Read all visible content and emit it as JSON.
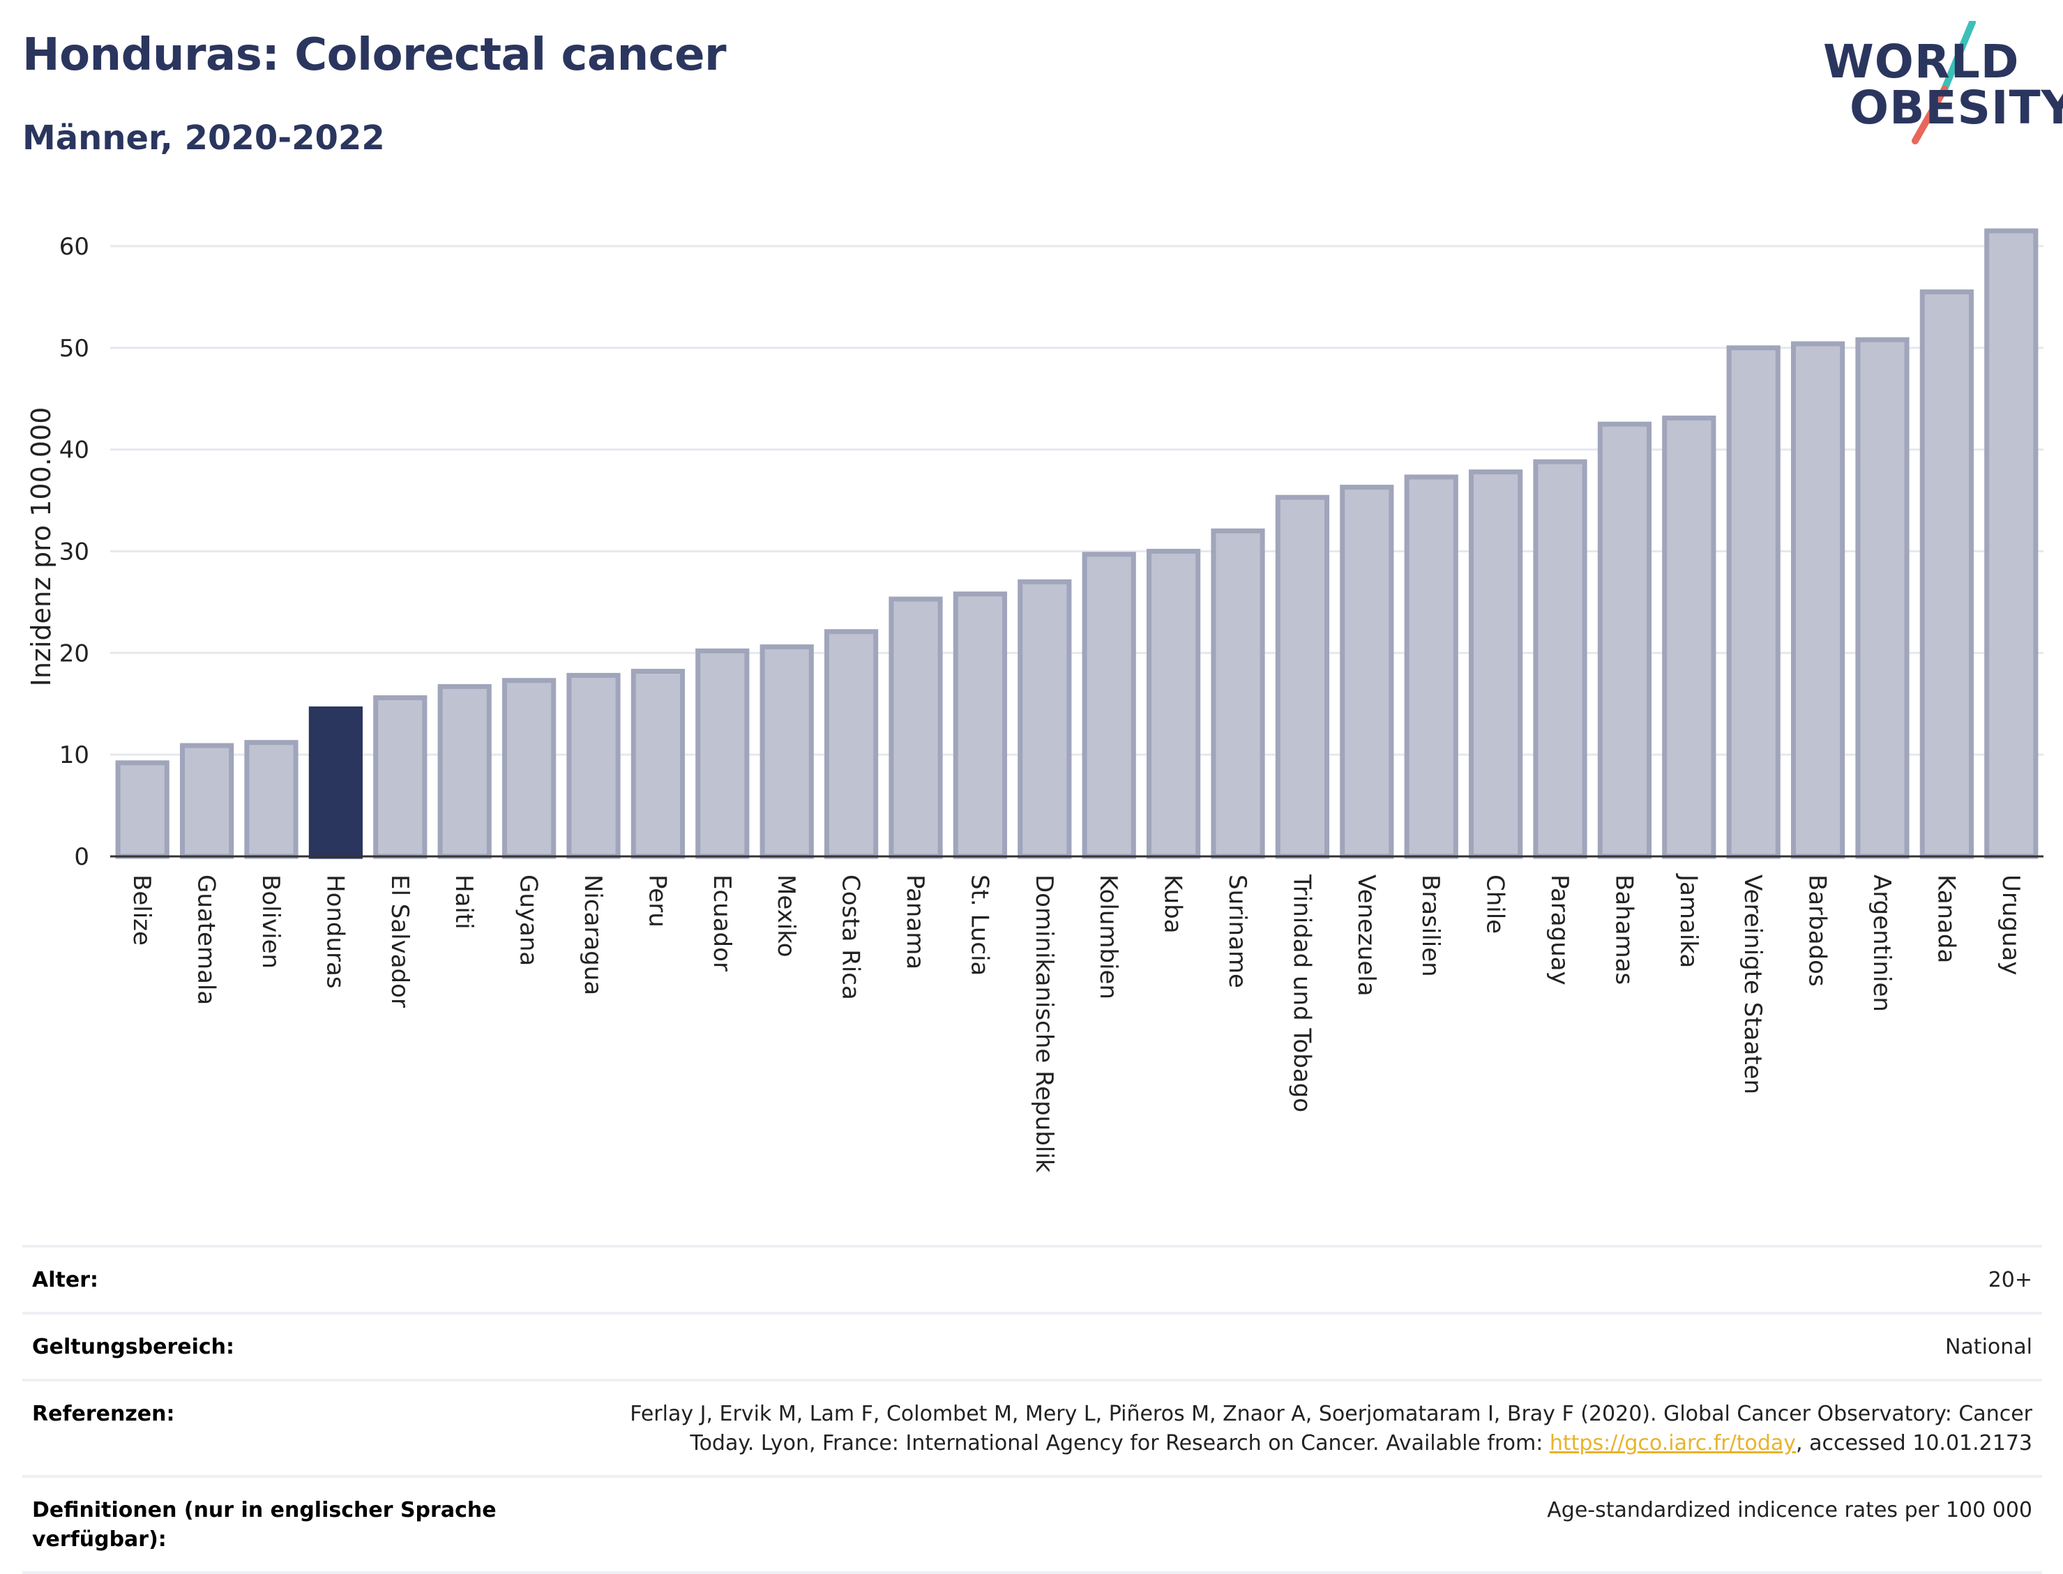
{
  "header": {
    "title": "Honduras: Colorectal cancer",
    "subtitle": "Männer, 2020-2022"
  },
  "logo": {
    "line1": "WORLD",
    "line2": "OBESITY",
    "slash_colors": [
      "#3dbfb8",
      "#e8675a"
    ]
  },
  "colors": {
    "highlight_bar": "#2b365f",
    "bar_fill": "#bfc2d0",
    "bar_stroke": "#a0a5bb",
    "grid": "#e6e8ee"
  },
  "chart_data": {
    "type": "bar",
    "ylabel": "Inzidenz pro 100.000",
    "xlabel": "",
    "ylim": [
      0,
      65
    ],
    "yticks": [
      0,
      10,
      20,
      30,
      40,
      50,
      60
    ],
    "grid": true,
    "highlight": "Honduras",
    "categories": [
      "Belize",
      "Guatemala",
      "Bolivien",
      "Honduras",
      "El Salvador",
      "Haiti",
      "Guyana",
      "Nicaragua",
      "Peru",
      "Ecuador",
      "Mexiko",
      "Costa Rica",
      "Panama",
      "St. Lucia",
      "Dominikanische Republik",
      "Kolumbien",
      "Kuba",
      "Suriname",
      "Trinidad und Tobago",
      "Venezuela",
      "Brasilien",
      "Chile",
      "Paraguay",
      "Bahamas",
      "Jamaika",
      "Vereinigte Staaten",
      "Barbados",
      "Argentinien",
      "Kanada",
      "Uruguay"
    ],
    "values": [
      9.2,
      10.9,
      11.2,
      14.5,
      15.6,
      16.7,
      17.3,
      17.8,
      18.2,
      20.2,
      20.6,
      22.1,
      25.3,
      25.8,
      27.0,
      29.7,
      30.0,
      32.0,
      35.3,
      36.3,
      37.3,
      37.8,
      38.8,
      42.5,
      43.1,
      50.0,
      50.4,
      50.8,
      55.5,
      61.5
    ]
  },
  "meta": {
    "rows": [
      {
        "label": "Alter:",
        "value": "20+"
      },
      {
        "label": "Geltungsbereich:",
        "value": "National"
      },
      {
        "label": "Referenzen:",
        "value_before": "Ferlay J, Ervik M, Lam F, Colombet M, Mery L, Piñeros M, Znaor A, Soerjomataram I, Bray F (2020). Global Cancer Observatory: Cancer Today. Lyon, France: International Agency for Research on Cancer. Available from: ",
        "link": "https://gco.iarc.fr/today",
        "value_after": ", accessed 10.01.2173"
      },
      {
        "label": "Definitionen (nur in englischer Sprache verfügbar):",
        "value": "Age-standardized indicence rates per 100 000"
      }
    ]
  }
}
